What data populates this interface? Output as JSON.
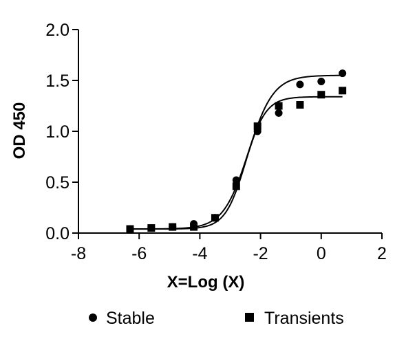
{
  "chart_data": {
    "type": "scatter",
    "title": "",
    "xlabel": "X=Log (X)",
    "ylabel": "OD 450",
    "xlim": [
      -8,
      2
    ],
    "ylim": [
      0,
      2
    ],
    "xticks": [
      -8,
      -6,
      -4,
      -2,
      0,
      2
    ],
    "yticks": [
      0,
      0.5,
      1,
      1.5,
      2
    ],
    "xtick_labels": [
      "-8",
      "-6",
      "-4",
      "-2",
      "0",
      "2"
    ],
    "ytick_labels": [
      "0.0",
      "0.5",
      "1.0",
      "1.5",
      "2.0"
    ],
    "grid": false,
    "legend_position": "bottom",
    "series": [
      {
        "name": "Stable",
        "marker": "circle",
        "x": [
          -6.3,
          -5.6,
          -4.9,
          -4.2,
          -3.5,
          -2.8,
          -2.1,
          -1.4,
          -0.7,
          0.0,
          0.7
        ],
        "y": [
          0.04,
          0.05,
          0.06,
          0.09,
          0.15,
          0.52,
          1.0,
          1.18,
          1.46,
          1.49,
          1.57
        ],
        "fit": {
          "bottom": 0.04,
          "top": 1.55,
          "logEC50": -2.4,
          "hill": 1.05
        }
      },
      {
        "name": "Transients",
        "marker": "square",
        "x": [
          -6.3,
          -5.6,
          -4.9,
          -4.2,
          -3.5,
          -2.8,
          -2.1,
          -1.4,
          -0.7,
          0.0,
          0.7
        ],
        "y": [
          0.04,
          0.05,
          0.06,
          0.06,
          0.15,
          0.46,
          1.05,
          1.25,
          1.26,
          1.36,
          1.4
        ],
        "fit": {
          "bottom": 0.04,
          "top": 1.34,
          "logEC50": -2.5,
          "hill": 1.3
        }
      }
    ]
  },
  "colors": {
    "ink": "#000000",
    "background": "#ffffff"
  }
}
